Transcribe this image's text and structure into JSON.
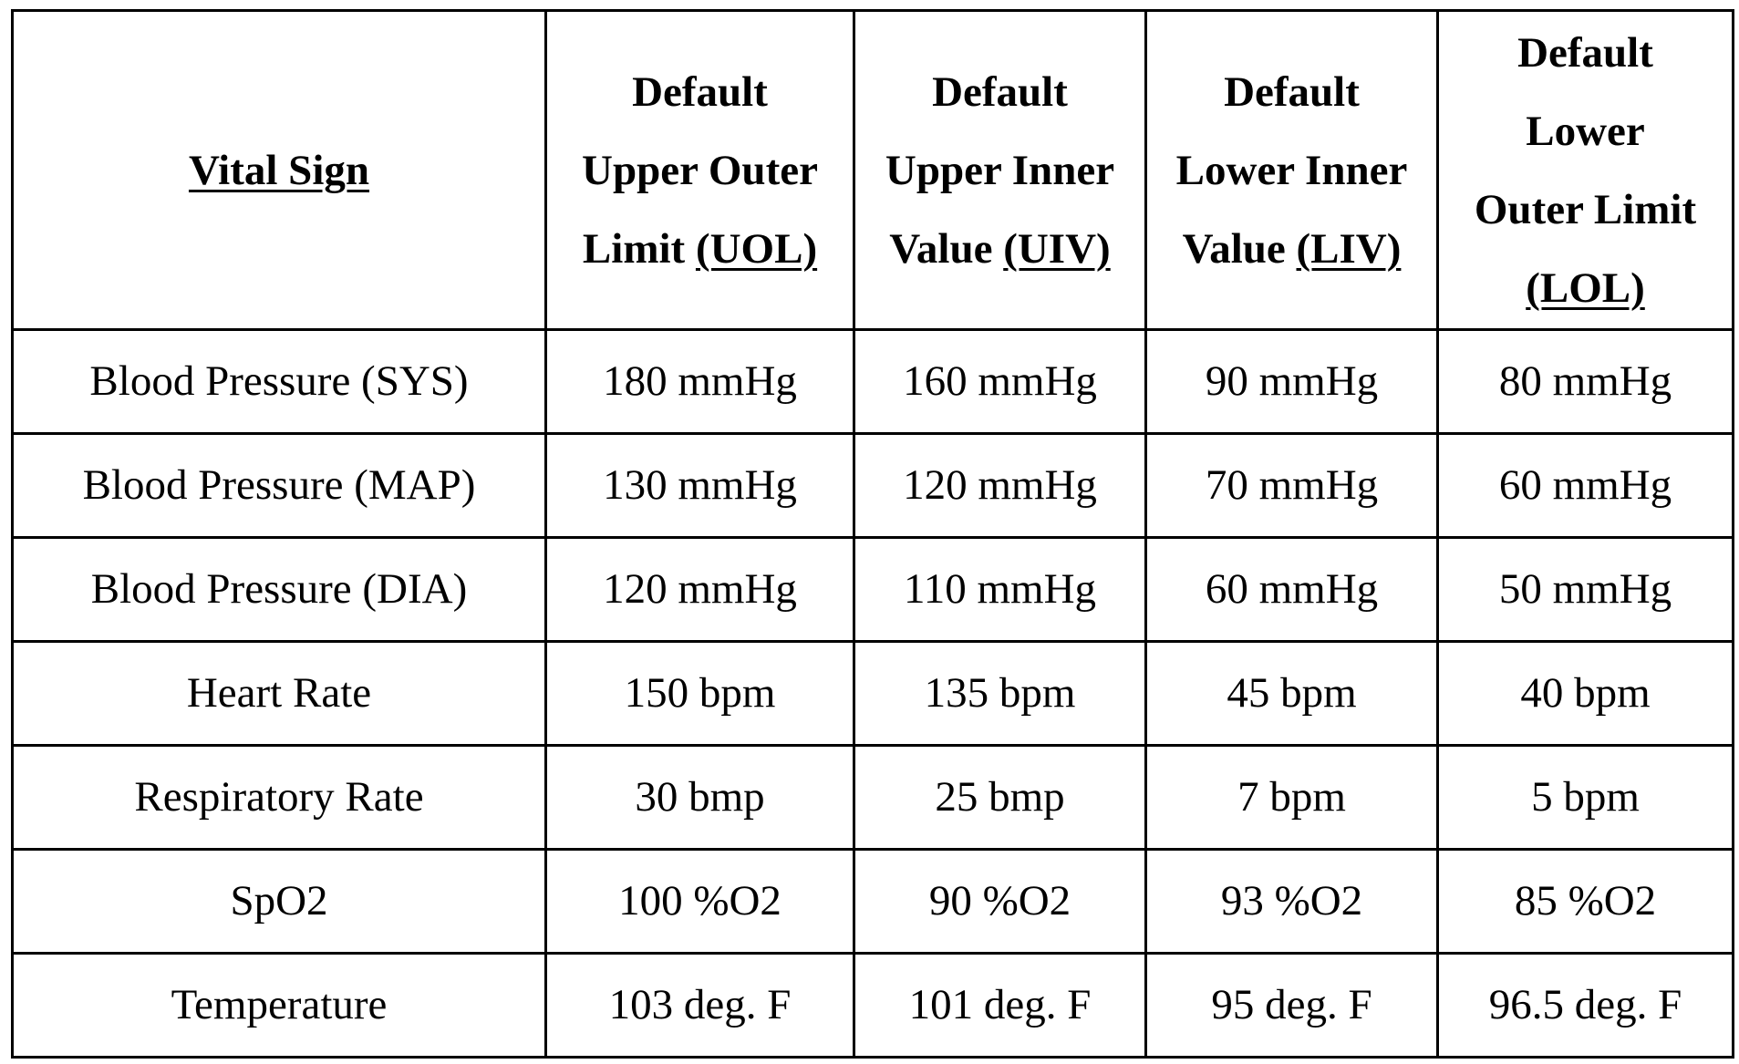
{
  "table": {
    "headers": [
      {
        "lines": [
          {
            "parts": [
              {
                "text": "Vital Sign",
                "underline": true
              }
            ]
          }
        ]
      },
      {
        "lines": [
          {
            "parts": [
              {
                "text": "Default",
                "underline": false
              }
            ]
          },
          {
            "parts": [
              {
                "text": "Upper Outer",
                "underline": false
              }
            ]
          },
          {
            "parts": [
              {
                "text": "Limit ",
                "underline": false
              },
              {
                "text": "(UOL)",
                "underline": true
              }
            ]
          }
        ]
      },
      {
        "lines": [
          {
            "parts": [
              {
                "text": "Default",
                "underline": false
              }
            ]
          },
          {
            "parts": [
              {
                "text": "Upper Inner",
                "underline": false
              }
            ]
          },
          {
            "parts": [
              {
                "text": "Value ",
                "underline": false
              },
              {
                "text": "(UIV)",
                "underline": true
              }
            ]
          }
        ]
      },
      {
        "lines": [
          {
            "parts": [
              {
                "text": "Default",
                "underline": false
              }
            ]
          },
          {
            "parts": [
              {
                "text": "Lower Inner",
                "underline": false
              }
            ]
          },
          {
            "parts": [
              {
                "text": "Value ",
                "underline": false
              },
              {
                "text": "(LIV)",
                "underline": true
              }
            ]
          }
        ]
      },
      {
        "lines": [
          {
            "parts": [
              {
                "text": "Default",
                "underline": false
              }
            ]
          },
          {
            "parts": [
              {
                "text": "Lower",
                "underline": false
              }
            ]
          },
          {
            "parts": [
              {
                "text": "Outer Limit",
                "underline": false
              }
            ]
          },
          {
            "parts": [
              {
                "text": "(LOL)",
                "underline": true
              }
            ]
          }
        ]
      }
    ],
    "rows": [
      [
        "Blood Pressure (SYS)",
        "180 mmHg",
        "160 mmHg",
        "90 mmHg",
        "80 mmHg"
      ],
      [
        "Blood Pressure (MAP)",
        "130 mmHg",
        "120 mmHg",
        "70 mmHg",
        "60 mmHg"
      ],
      [
        "Blood Pressure (DIA)",
        "120 mmHg",
        "110 mmHg",
        "60 mmHg",
        "50 mmHg"
      ],
      [
        "Heart Rate",
        "150 bpm",
        "135 bpm",
        "45 bpm",
        "40 bpm"
      ],
      [
        "Respiratory Rate",
        "30 bmp",
        "25 bmp",
        "7 bpm",
        "5 bpm"
      ],
      [
        "SpO2",
        "100 %O2",
        "90 %O2",
        "93 %O2",
        "85 %O2"
      ],
      [
        "Temperature",
        "103 deg. F",
        "101 deg. F",
        "95 deg. F",
        "96.5 deg. F"
      ]
    ]
  }
}
